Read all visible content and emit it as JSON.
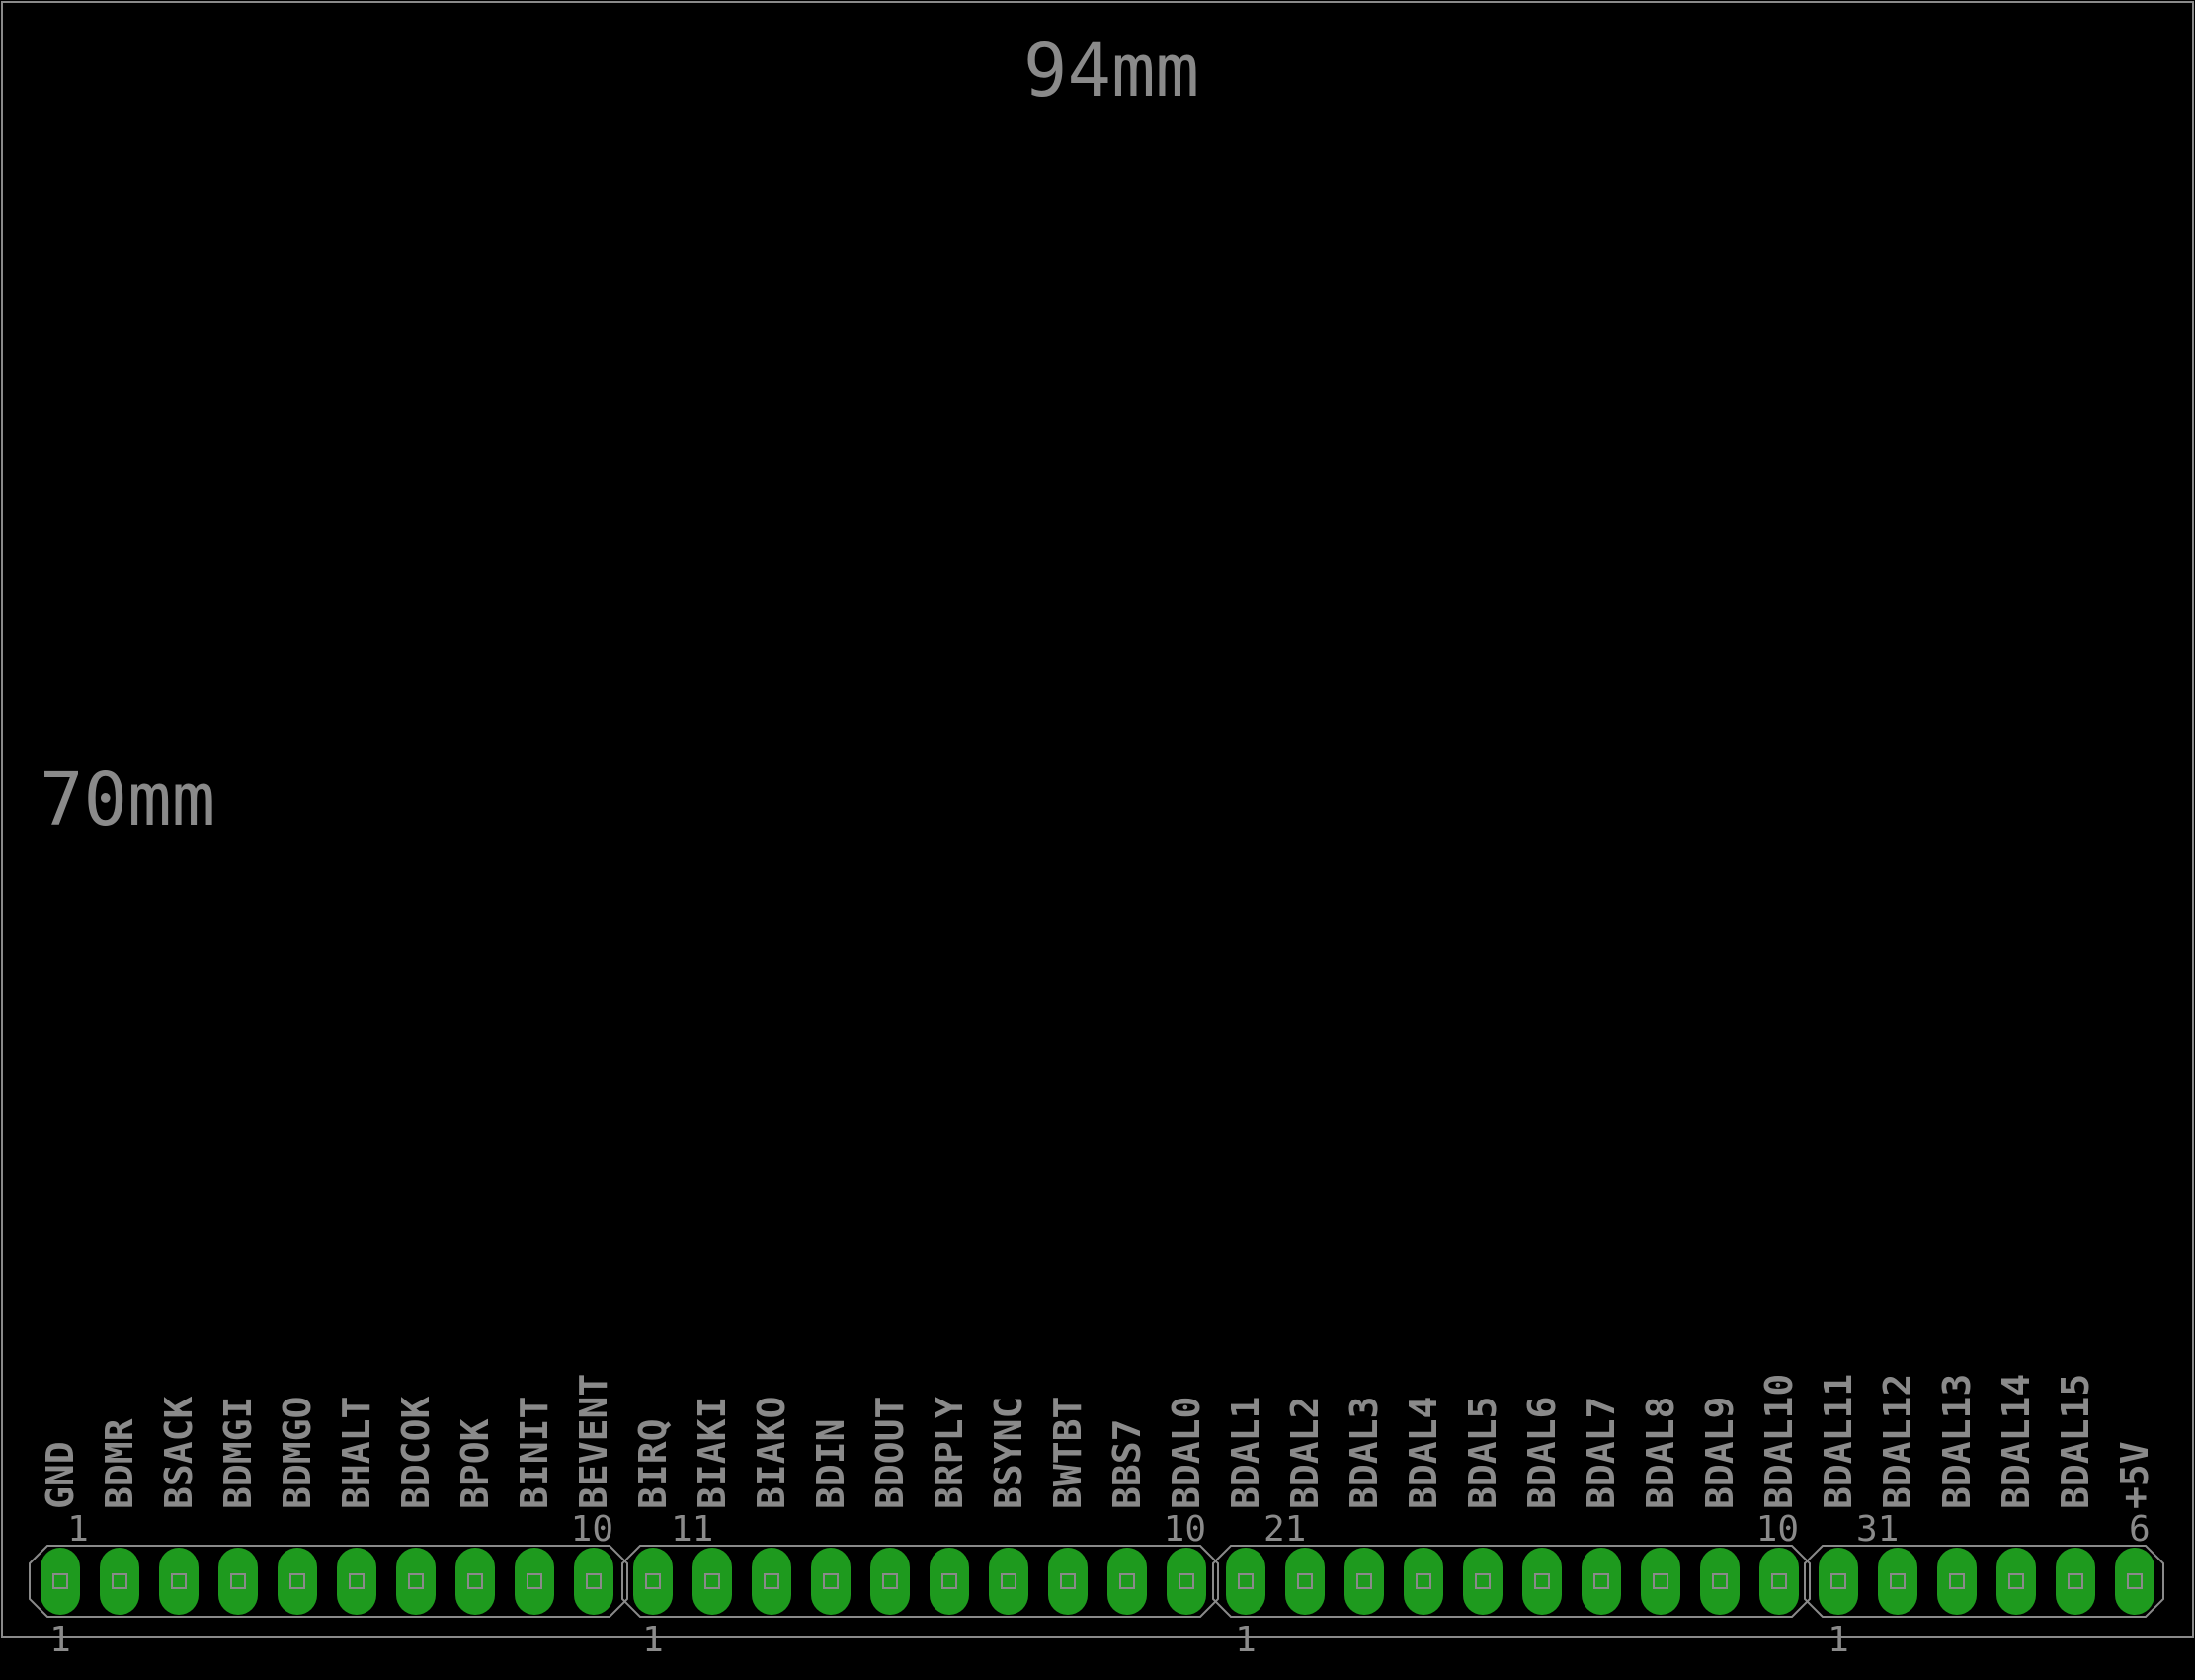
{
  "dimensions": {
    "width_label": "94mm",
    "height_label": "70mm"
  },
  "colors": {
    "background": "#000000",
    "outline": "#8a8a8a",
    "text": "#8a8a8a",
    "pad": "#1e9a1e",
    "pad_hole": "#8a8a8a"
  },
  "connectors": [
    {
      "pin_start": "1",
      "pin_end": "10",
      "ref_label": "1",
      "signals": [
        "GND",
        "BDMR",
        "BSACK",
        "BDMGI",
        "BDMGO",
        "BHALT",
        "BDCOK",
        "BPOK",
        "BINIT",
        "BEVENT"
      ]
    },
    {
      "pin_start": "11",
      "pin_end": "10",
      "ref_label": "1",
      "signals": [
        "BIRQ",
        "BIAKI",
        "BIAKO",
        "BDIN",
        "BDOUT",
        "BRPLY",
        "BSYNC",
        "BWTBT",
        "BBS7",
        "BDAL0"
      ]
    },
    {
      "pin_start": "21",
      "pin_end": "10",
      "ref_label": "1",
      "signals": [
        "BDAL1",
        "BDAL2",
        "BDAL3",
        "BDAL4",
        "BDAL5",
        "BDAL6",
        "BDAL7",
        "BDAL8",
        "BDAL9",
        "BDAL10"
      ]
    },
    {
      "pin_start": "31",
      "pin_end": "6",
      "ref_label": "1",
      "signals": [
        "BDAL11",
        "BDAL12",
        "BDAL13",
        "BDAL14",
        "BDAL15",
        "+5V"
      ]
    }
  ]
}
